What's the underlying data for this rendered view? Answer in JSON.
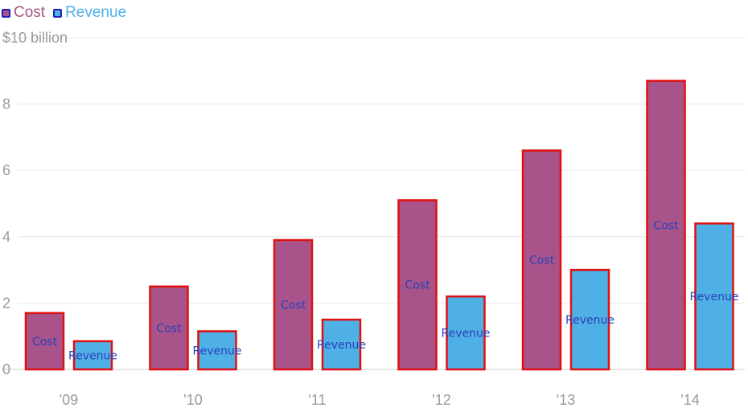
{
  "legend": {
    "items": [
      {
        "label": "Cost",
        "color": "#a8548a"
      },
      {
        "label": "Revenue",
        "color": "#4fb0e6"
      }
    ]
  },
  "colors": {
    "bar_outline": "#e01010",
    "bar_label": "#2a3fb8",
    "grid": "#e8e8e8",
    "axis": "#cccccc",
    "tick_text": "#9a9a9a"
  },
  "chart_data": {
    "type": "bar",
    "categories": [
      "'09",
      "'10",
      "'11",
      "'12",
      "'13",
      "'14"
    ],
    "series": [
      {
        "name": "Cost",
        "values": [
          1.7,
          2.5,
          3.9,
          5.1,
          6.6,
          8.7
        ],
        "bar_label": "Cost"
      },
      {
        "name": "Revenue",
        "values": [
          0.85,
          1.15,
          1.5,
          2.2,
          3.0,
          4.4
        ],
        "bar_label": "Revenue"
      }
    ],
    "ylabel": "",
    "ylim": [
      0,
      10
    ],
    "yticks": [
      {
        "value": 0,
        "label": "0"
      },
      {
        "value": 2,
        "label": "2"
      },
      {
        "value": 4,
        "label": "4"
      },
      {
        "value": 6,
        "label": "6"
      },
      {
        "value": 8,
        "label": "8"
      },
      {
        "value": 10,
        "label": "$10 billion"
      }
    ],
    "grid": true,
    "legend_position": "top-left"
  }
}
